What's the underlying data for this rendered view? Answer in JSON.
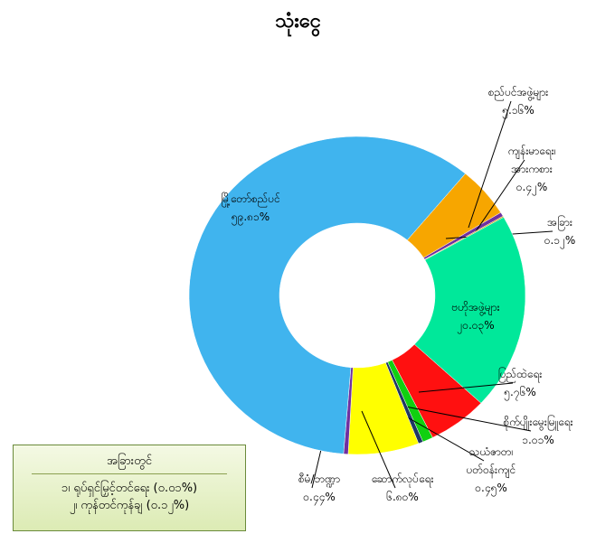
{
  "chart_data": {
    "type": "donut",
    "title": "သုံးငွေ",
    "categories": [
      "စည်ပင်အဖွဲ့များ",
      "ကျန်းမာရေး၊ အားကစား",
      "အခြား",
      "ဗဟိုအဖွဲ့များ",
      "ပြည်ထဲရေး",
      "စိုက်ပျိုးမွေးမြူရေး",
      "သယံဇာတ၊ ပတ်ဝန်းကျင်",
      "ဆောက်လုပ်ရေး",
      "စီမံ/ဘဏ္ဍာ",
      "မြို့တော်စည်ပင်"
    ],
    "values": [
      5.16,
      0.42,
      0.12,
      20.03,
      5.76,
      1.01,
      0.45,
      6.8,
      0.44,
      59.81
    ],
    "value_labels": [
      "၅.၁၆%",
      "၀.၄၂%",
      "၀.၁၂%",
      "၂၀.၀၃%",
      "၅.၇၆%",
      "၁.၀၁%",
      "၀.၄၅%",
      "၆.၈၀%",
      "၀.၄၄%",
      "၅၉.၈၁%"
    ],
    "colors": [
      "#f7a600",
      "#7030a0",
      "#c8a000",
      "#00e89a",
      "#ff1010",
      "#10d010",
      "#1f3864",
      "#ffff00",
      "#7030a0",
      "#40b4ee"
    ],
    "annotations": [
      "အခြားတွင်",
      "၁၊ ရုပ်ရှင်မြှင့်တင်ရေး (၀.၀၁%)",
      "၂၊ ကုန်တင်ကုန်ချ (၀.၁၂%)"
    ]
  }
}
